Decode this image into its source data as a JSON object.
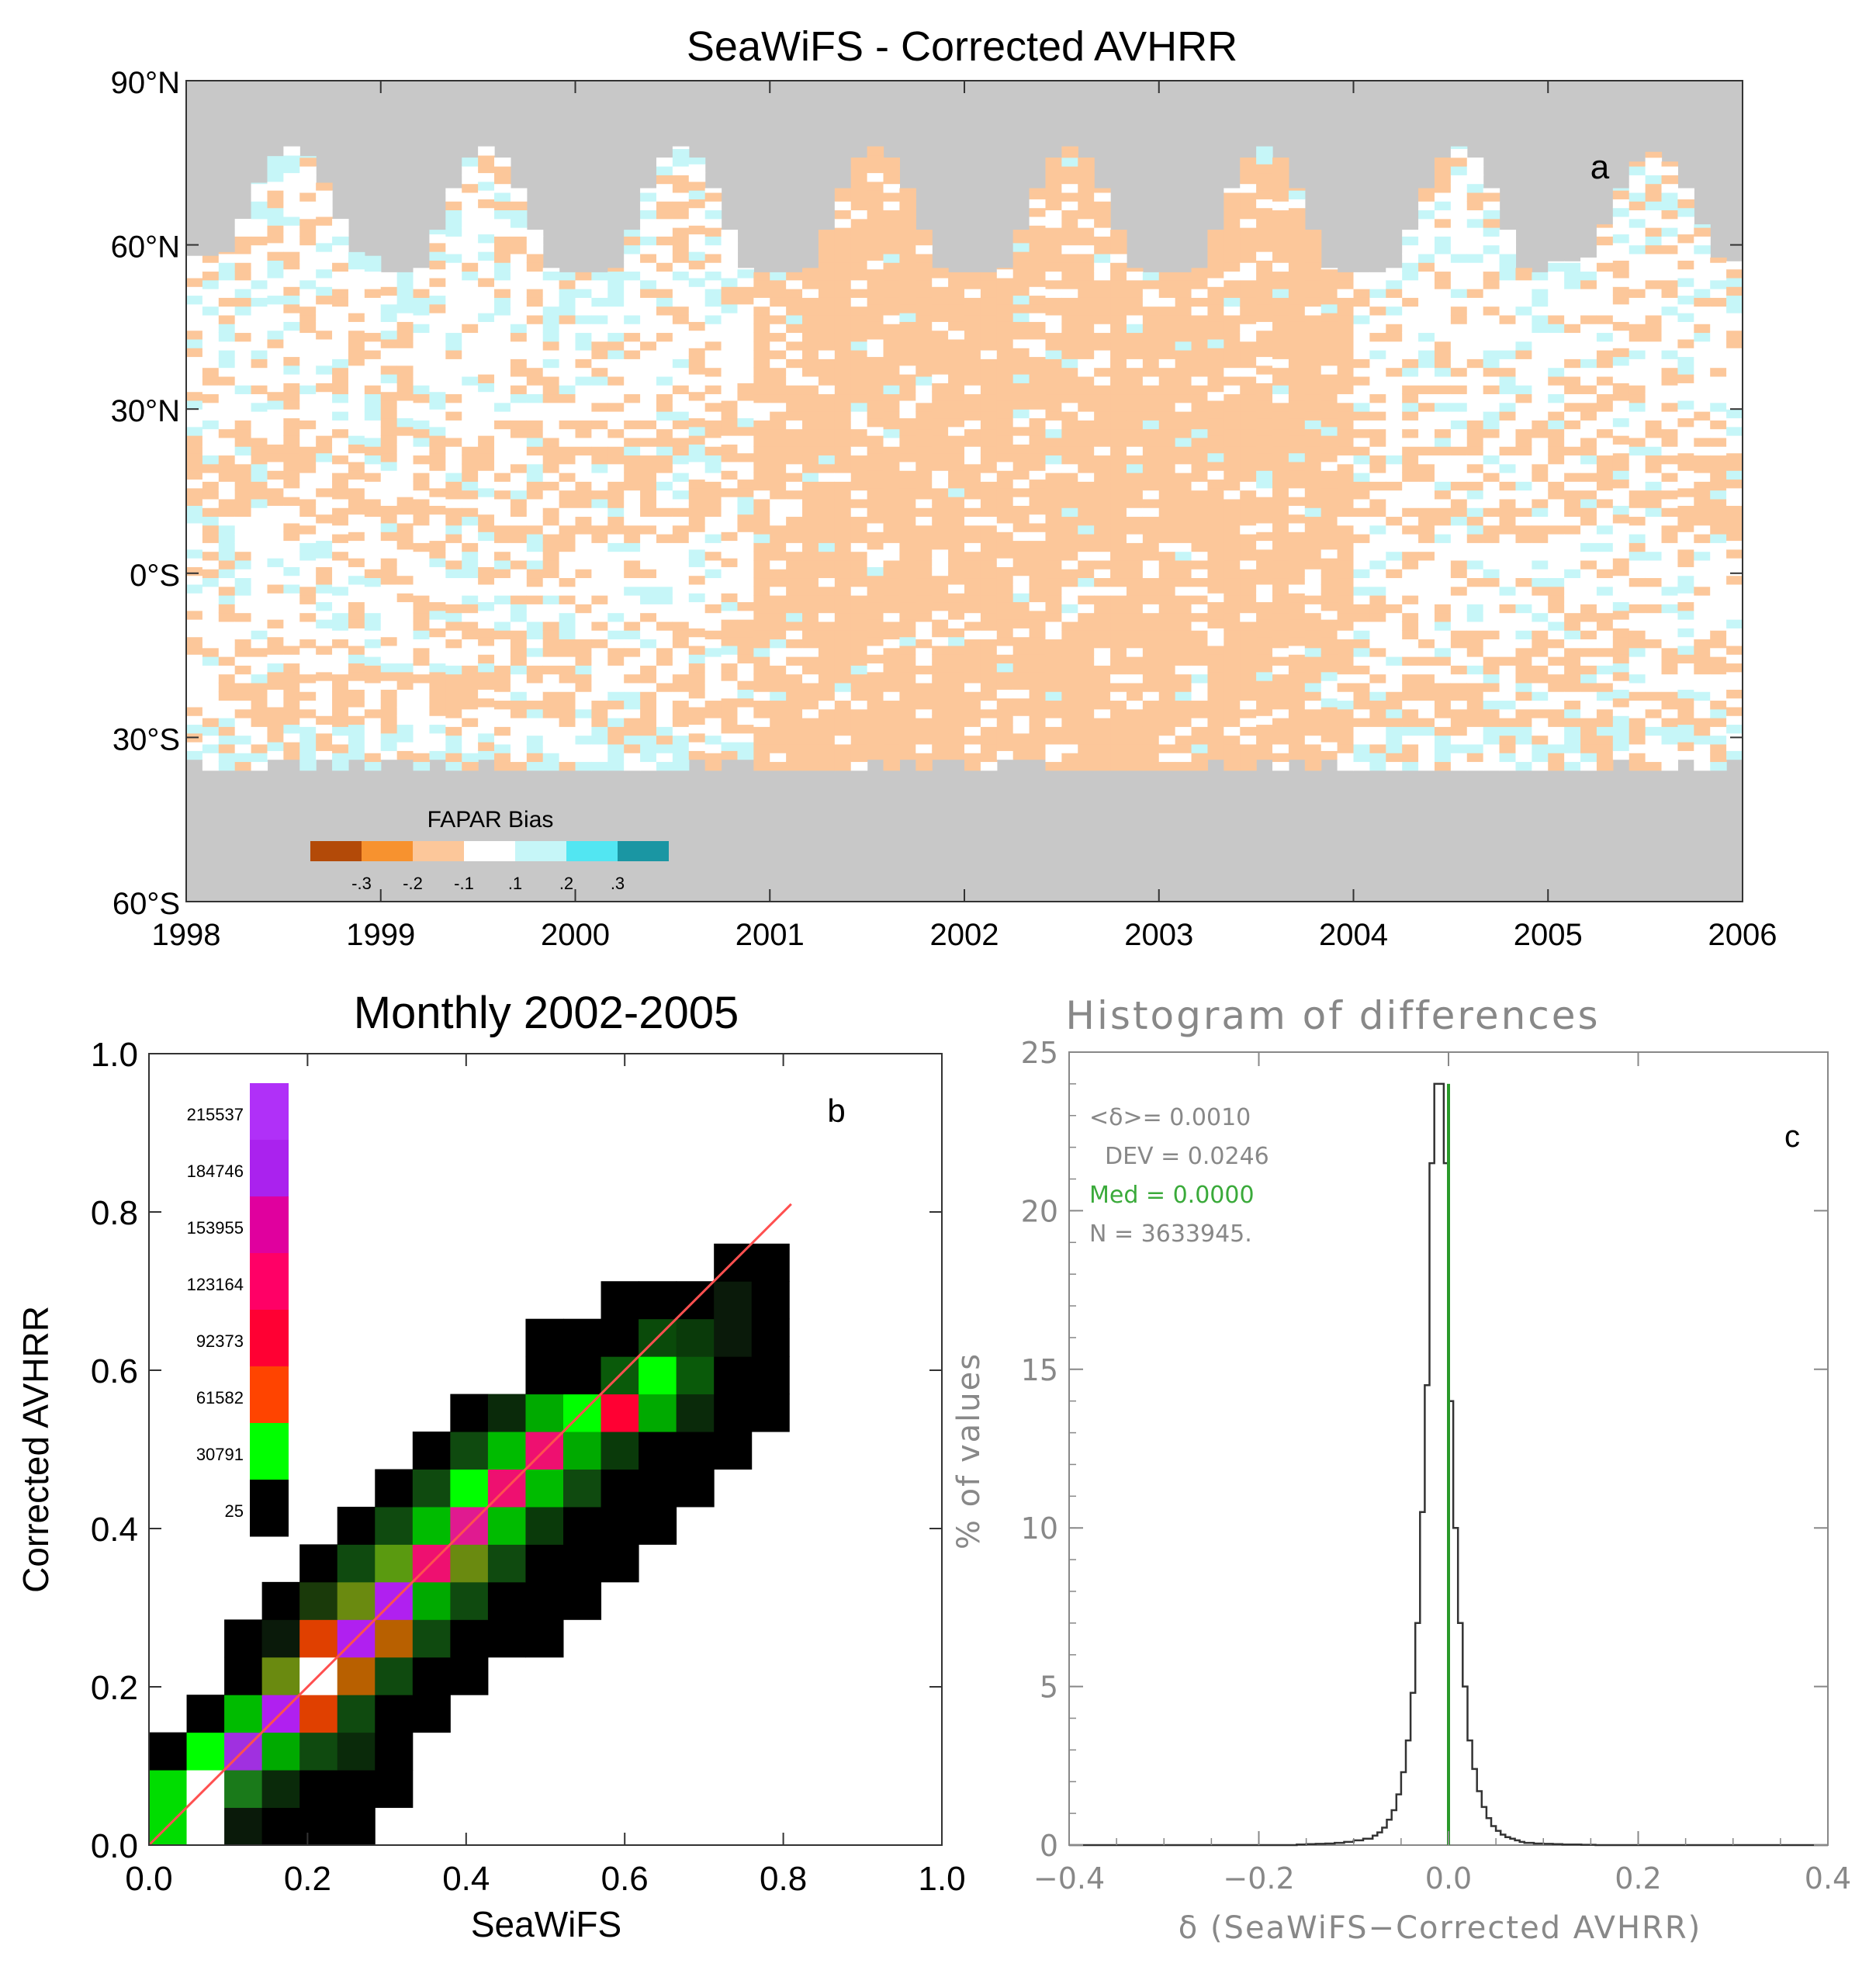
{
  "chart_data": [
    {
      "id": "a",
      "type": "heatmap",
      "title": "SeaWiFS - Corrected AVHRR",
      "panel_label": "a",
      "xlim": [
        1998,
        2006
      ],
      "x_ticks": [
        "1998",
        "1999",
        "2000",
        "2001",
        "2002",
        "2003",
        "2004",
        "2005",
        "2006"
      ],
      "ylim": [
        -60,
        90
      ],
      "y_ticks": [
        {
          "value": 90,
          "label": "90°N"
        },
        {
          "value": 60,
          "label": "60°N"
        },
        {
          "value": 30,
          "label": "30°N"
        },
        {
          "value": 0,
          "label": "0°S"
        },
        {
          "value": -30,
          "label": "30°S"
        },
        {
          "value": -60,
          "label": "60°S"
        }
      ],
      "no_data_color": "#c8c8c8",
      "legend": {
        "title": "FAPAR Bias",
        "placement": "bottom-left",
        "colors": [
          "#b34a08",
          "#f7922f",
          "#fcc79a",
          "#ffffff",
          "#c6f6f8",
          "#52e6f2",
          "#1a96a3"
        ],
        "tick_labels": [
          "-.3",
          "-.2",
          "-.1",
          ".1",
          ".2",
          ".3"
        ]
      },
      "northern_data_limit_by_year": [
        {
          "year": 1998,
          "min_lat": 58,
          "max_lat": 78
        },
        {
          "year": 1999,
          "min_lat": 55,
          "max_lat": 78
        },
        {
          "year": 2000,
          "min_lat": 55,
          "max_lat": 78
        },
        {
          "year": 2001,
          "min_lat": 55,
          "max_lat": 78
        },
        {
          "year": 2002,
          "min_lat": 55,
          "max_lat": 78
        },
        {
          "year": 2003,
          "min_lat": 55,
          "max_lat": 78
        },
        {
          "year": 2004,
          "min_lat": 55,
          "max_lat": 78
        },
        {
          "year": 2005,
          "min_lat": 57,
          "max_lat": 77
        }
      ],
      "southern_data_limit": -36,
      "dominant_bias_by_period": [
        {
          "from": 1998.0,
          "to": 2000.8,
          "bias": "mixed white / light orange / light cyan"
        },
        {
          "from": 2000.85,
          "to": 2004.0,
          "bias": "-.1 to -.2 (light orange)"
        },
        {
          "from": 2004.0,
          "to": 2006.0,
          "bias": "mixed white / light orange / light cyan"
        }
      ]
    },
    {
      "id": "b",
      "type": "heatmap",
      "title": "Monthly 2002-2005",
      "panel_label": "b",
      "xlabel": "SeaWiFS",
      "ylabel": "Corrected AVHRR",
      "xlim": [
        0.0,
        1.0
      ],
      "ylim": [
        0.0,
        1.0
      ],
      "x_ticks": [
        "0.0",
        "0.2",
        "0.4",
        "0.6",
        "0.8",
        "1.0"
      ],
      "y_ticks": [
        "0.0",
        "0.2",
        "0.4",
        "0.6",
        "0.8",
        "1.0"
      ],
      "bin_width": 0.0475,
      "one_to_one_line_color": "#ff5050",
      "colorbar": {
        "placement": "top-left",
        "levels": [
          25,
          30791,
          61582,
          92373,
          123164,
          153955,
          184746,
          215537
        ],
        "colors": [
          "#000000",
          "#00ff00",
          "#ff4400",
          "#ff0033",
          "#ff0066",
          "#e0009e",
          "#aa22ee",
          "#b030f8"
        ]
      },
      "cells": [
        {
          "i": 0,
          "j": 0,
          "color": "#00dd00"
        },
        {
          "i": 1,
          "j": 0,
          "color": "#ffffff"
        },
        {
          "i": 2,
          "j": 0,
          "color": "#0a1a0a"
        },
        {
          "i": 3,
          "j": 0,
          "color": "#000000"
        },
        {
          "i": 4,
          "j": 0,
          "color": "#000000"
        },
        {
          "i": 5,
          "j": 0,
          "color": "#000000"
        },
        {
          "i": 0,
          "j": 1,
          "color": "#00dd00"
        },
        {
          "i": 1,
          "j": 1,
          "color": "#ffffff"
        },
        {
          "i": 2,
          "j": 1,
          "color": "#1a7a1a"
        },
        {
          "i": 3,
          "j": 1,
          "color": "#0a2a0a"
        },
        {
          "i": 4,
          "j": 1,
          "color": "#000000"
        },
        {
          "i": 5,
          "j": 1,
          "color": "#000000"
        },
        {
          "i": 6,
          "j": 1,
          "color": "#000000"
        },
        {
          "i": 0,
          "j": 2,
          "color": "#000000"
        },
        {
          "i": 1,
          "j": 2,
          "color": "#00ff00"
        },
        {
          "i": 2,
          "j": 2,
          "color": "#a030e0"
        },
        {
          "i": 3,
          "j": 2,
          "color": "#00aa00"
        },
        {
          "i": 4,
          "j": 2,
          "color": "#0f4a0f"
        },
        {
          "i": 5,
          "j": 2,
          "color": "#0a2a0a"
        },
        {
          "i": 6,
          "j": 2,
          "color": "#000000"
        },
        {
          "i": 1,
          "j": 3,
          "color": "#000000"
        },
        {
          "i": 2,
          "j": 3,
          "color": "#00bb00"
        },
        {
          "i": 3,
          "j": 3,
          "color": "#b020f0"
        },
        {
          "i": 4,
          "j": 3,
          "color": "#e04000"
        },
        {
          "i": 5,
          "j": 3,
          "color": "#0f4a0f"
        },
        {
          "i": 6,
          "j": 3,
          "color": "#000000"
        },
        {
          "i": 7,
          "j": 3,
          "color": "#000000"
        },
        {
          "i": 2,
          "j": 4,
          "color": "#000000"
        },
        {
          "i": 3,
          "j": 4,
          "color": "#6a8a10"
        },
        {
          "i": 4,
          "j": 4,
          "color": "#ffffff"
        },
        {
          "i": 5,
          "j": 4,
          "color": "#b86000"
        },
        {
          "i": 6,
          "j": 4,
          "color": "#0f4a0f"
        },
        {
          "i": 7,
          "j": 4,
          "color": "#000000"
        },
        {
          "i": 8,
          "j": 4,
          "color": "#000000"
        },
        {
          "i": 2,
          "j": 5,
          "color": "#000000"
        },
        {
          "i": 3,
          "j": 5,
          "color": "#0a1a0a"
        },
        {
          "i": 4,
          "j": 5,
          "color": "#e04000"
        },
        {
          "i": 5,
          "j": 5,
          "color": "#b020f0"
        },
        {
          "i": 6,
          "j": 5,
          "color": "#b86000"
        },
        {
          "i": 7,
          "j": 5,
          "color": "#0f4a0f"
        },
        {
          "i": 8,
          "j": 5,
          "color": "#000000"
        },
        {
          "i": 9,
          "j": 5,
          "color": "#000000"
        },
        {
          "i": 10,
          "j": 5,
          "color": "#000000"
        },
        {
          "i": 3,
          "j": 6,
          "color": "#000000"
        },
        {
          "i": 4,
          "j": 6,
          "color": "#1a3a0a"
        },
        {
          "i": 5,
          "j": 6,
          "color": "#6a8a10"
        },
        {
          "i": 6,
          "j": 6,
          "color": "#b020f0"
        },
        {
          "i": 7,
          "j": 6,
          "color": "#00aa00"
        },
        {
          "i": 8,
          "j": 6,
          "color": "#0f4a0f"
        },
        {
          "i": 9,
          "j": 6,
          "color": "#000000"
        },
        {
          "i": 10,
          "j": 6,
          "color": "#000000"
        },
        {
          "i": 11,
          "j": 6,
          "color": "#000000"
        },
        {
          "i": 4,
          "j": 7,
          "color": "#000000"
        },
        {
          "i": 5,
          "j": 7,
          "color": "#0f4a0f"
        },
        {
          "i": 6,
          "j": 7,
          "color": "#5a9a10"
        },
        {
          "i": 7,
          "j": 7,
          "color": "#ee1070"
        },
        {
          "i": 8,
          "j": 7,
          "color": "#6a8a10"
        },
        {
          "i": 9,
          "j": 7,
          "color": "#0f4a0f"
        },
        {
          "i": 10,
          "j": 7,
          "color": "#000000"
        },
        {
          "i": 11,
          "j": 7,
          "color": "#000000"
        },
        {
          "i": 12,
          "j": 7,
          "color": "#000000"
        },
        {
          "i": 5,
          "j": 8,
          "color": "#000000"
        },
        {
          "i": 6,
          "j": 8,
          "color": "#0f4a0f"
        },
        {
          "i": 7,
          "j": 8,
          "color": "#00bb00"
        },
        {
          "i": 8,
          "j": 8,
          "color": "#e01a90"
        },
        {
          "i": 9,
          "j": 8,
          "color": "#00bb00"
        },
        {
          "i": 10,
          "j": 8,
          "color": "#0a3a0a"
        },
        {
          "i": 11,
          "j": 8,
          "color": "#000000"
        },
        {
          "i": 12,
          "j": 8,
          "color": "#000000"
        },
        {
          "i": 13,
          "j": 8,
          "color": "#000000"
        },
        {
          "i": 6,
          "j": 9,
          "color": "#000000"
        },
        {
          "i": 7,
          "j": 9,
          "color": "#0f4a0f"
        },
        {
          "i": 8,
          "j": 9,
          "color": "#00ff00"
        },
        {
          "i": 9,
          "j": 9,
          "color": "#ee1070"
        },
        {
          "i": 10,
          "j": 9,
          "color": "#00bb00"
        },
        {
          "i": 11,
          "j": 9,
          "color": "#0f4a0f"
        },
        {
          "i": 12,
          "j": 9,
          "color": "#000000"
        },
        {
          "i": 13,
          "j": 9,
          "color": "#000000"
        },
        {
          "i": 14,
          "j": 9,
          "color": "#000000"
        },
        {
          "i": 7,
          "j": 10,
          "color": "#000000"
        },
        {
          "i": 8,
          "j": 10,
          "color": "#0f4a0f"
        },
        {
          "i": 9,
          "j": 10,
          "color": "#00bb00"
        },
        {
          "i": 10,
          "j": 10,
          "color": "#ee1070"
        },
        {
          "i": 11,
          "j": 10,
          "color": "#00aa00"
        },
        {
          "i": 12,
          "j": 10,
          "color": "#0a3a0a"
        },
        {
          "i": 13,
          "j": 10,
          "color": "#000000"
        },
        {
          "i": 14,
          "j": 10,
          "color": "#000000"
        },
        {
          "i": 15,
          "j": 10,
          "color": "#000000"
        },
        {
          "i": 8,
          "j": 11,
          "color": "#000000"
        },
        {
          "i": 9,
          "j": 11,
          "color": "#0a2a0a"
        },
        {
          "i": 10,
          "j": 11,
          "color": "#00aa00"
        },
        {
          "i": 11,
          "j": 11,
          "color": "#00ff00"
        },
        {
          "i": 12,
          "j": 11,
          "color": "#ff0033"
        },
        {
          "i": 13,
          "j": 11,
          "color": "#00aa00"
        },
        {
          "i": 14,
          "j": 11,
          "color": "#0a2a0a"
        },
        {
          "i": 15,
          "j": 11,
          "color": "#000000"
        },
        {
          "i": 16,
          "j": 11,
          "color": "#000000"
        },
        {
          "i": 10,
          "j": 12,
          "color": "#000000"
        },
        {
          "i": 11,
          "j": 12,
          "color": "#000000"
        },
        {
          "i": 12,
          "j": 12,
          "color": "#0a5a0a"
        },
        {
          "i": 13,
          "j": 12,
          "color": "#00ff00"
        },
        {
          "i": 14,
          "j": 12,
          "color": "#0a5a0a"
        },
        {
          "i": 15,
          "j": 12,
          "color": "#000000"
        },
        {
          "i": 16,
          "j": 12,
          "color": "#000000"
        },
        {
          "i": 10,
          "j": 13,
          "color": "#000000"
        },
        {
          "i": 11,
          "j": 13,
          "color": "#000000"
        },
        {
          "i": 12,
          "j": 13,
          "color": "#000000"
        },
        {
          "i": 13,
          "j": 13,
          "color": "#0a4a0a"
        },
        {
          "i": 14,
          "j": 13,
          "color": "#0a3a0a"
        },
        {
          "i": 15,
          "j": 13,
          "color": "#0a1a0a"
        },
        {
          "i": 16,
          "j": 13,
          "color": "#000000"
        },
        {
          "i": 12,
          "j": 14,
          "color": "#000000"
        },
        {
          "i": 13,
          "j": 14,
          "color": "#000000"
        },
        {
          "i": 14,
          "j": 14,
          "color": "#000000"
        },
        {
          "i": 15,
          "j": 14,
          "color": "#0a1a0a"
        },
        {
          "i": 16,
          "j": 14,
          "color": "#000000"
        },
        {
          "i": 15,
          "j": 15,
          "color": "#000000"
        },
        {
          "i": 16,
          "j": 15,
          "color": "#000000"
        }
      ]
    },
    {
      "id": "c",
      "type": "line",
      "title": "Histogram of differences",
      "panel_label": "c",
      "xlabel": "δ (SeaWiFS−Corrected AVHRR)",
      "ylabel": "% of values",
      "xlim": [
        -0.4,
        0.4
      ],
      "ylim": [
        0,
        25
      ],
      "x_ticks": [
        "−0.4",
        "−0.2",
        "0.0",
        "0.2",
        "0.4"
      ],
      "y_ticks": [
        "0",
        "5",
        "10",
        "15",
        "20",
        "25"
      ],
      "stats": [
        {
          "text": "<δ>= 0.0010",
          "color": "#555555"
        },
        {
          "text": "DEV = 0.0246",
          "color": "#555555"
        },
        {
          "text": "Med = 0.0000",
          "color": "#3aaa3a"
        },
        {
          "text": "N = 3633945.",
          "color": "#555555"
        }
      ],
      "median_line": {
        "x": 0.0,
        "color": "#2a9a2a"
      },
      "bin_width": 0.005,
      "x": [
        -0.16,
        -0.15,
        -0.14,
        -0.13,
        -0.12,
        -0.11,
        -0.1,
        -0.09,
        -0.08,
        -0.075,
        -0.07,
        -0.065,
        -0.06,
        -0.055,
        -0.05,
        -0.045,
        -0.04,
        -0.035,
        -0.03,
        -0.025,
        -0.02,
        -0.015,
        -0.01,
        -0.005,
        0.0,
        0.005,
        0.01,
        0.015,
        0.02,
        0.025,
        0.03,
        0.035,
        0.04,
        0.045,
        0.05,
        0.055,
        0.06,
        0.065,
        0.07,
        0.075,
        0.08,
        0.09,
        0.1,
        0.11,
        0.12,
        0.13,
        0.14,
        0.15
      ],
      "values": [
        0.02,
        0.03,
        0.04,
        0.05,
        0.07,
        0.1,
        0.15,
        0.2,
        0.3,
        0.4,
        0.55,
        0.8,
        1.1,
        1.6,
        2.3,
        3.3,
        4.8,
        7.0,
        10.5,
        14.5,
        21.5,
        24.0,
        24.0,
        21.5,
        14.0,
        10.0,
        7.0,
        5.0,
        3.3,
        2.4,
        1.7,
        1.2,
        0.85,
        0.6,
        0.45,
        0.33,
        0.25,
        0.2,
        0.15,
        0.1,
        0.07,
        0.05,
        0.04,
        0.03,
        0.02,
        0.02,
        0.01,
        0.01
      ]
    }
  ]
}
